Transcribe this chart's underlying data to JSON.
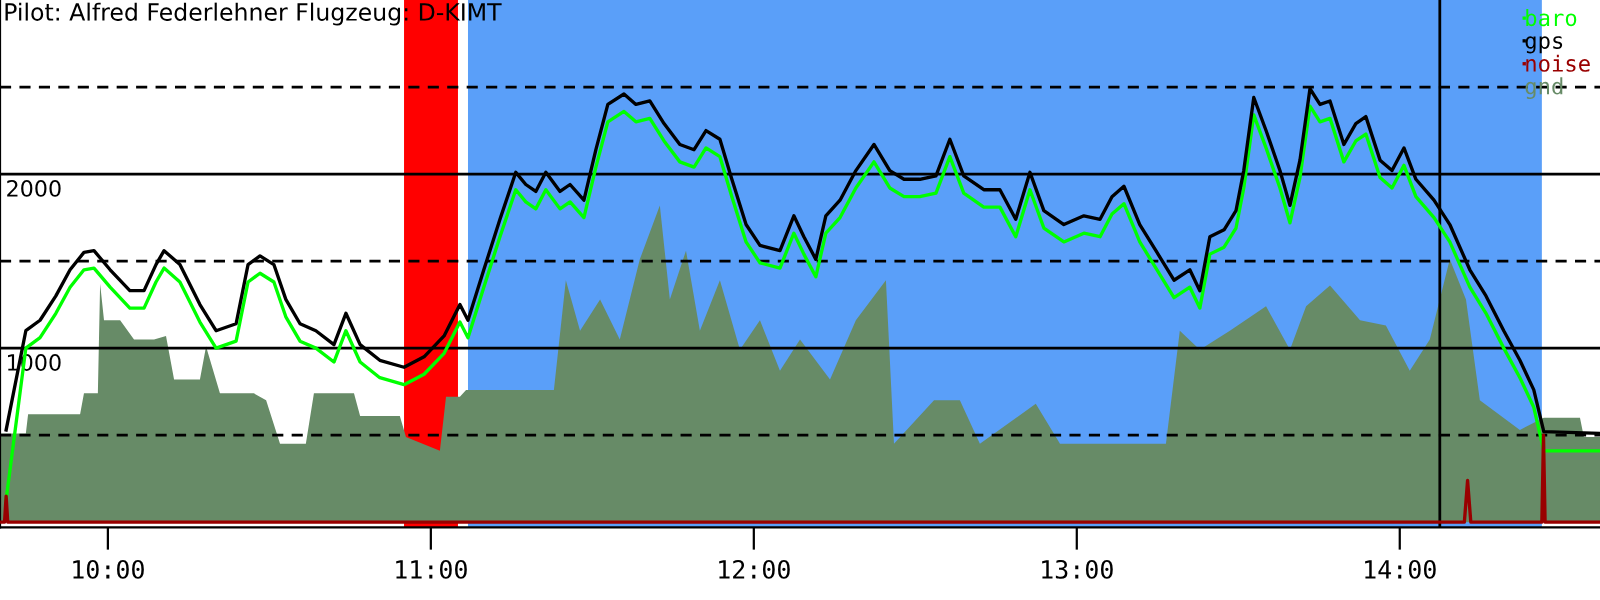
{
  "chart_data": {
    "type": "line",
    "title": "Pilot: Alfred Federlehner Flugzeug: D-KIMT",
    "xlim": [
      9.666,
      14.62
    ],
    "ylim": [
      -30,
      3000
    ],
    "xticks": [
      {
        "value": 10,
        "label": "10:00"
      },
      {
        "value": 11,
        "label": "11:00"
      },
      {
        "value": 12,
        "label": "12:00"
      },
      {
        "value": 13,
        "label": "13:00"
      },
      {
        "value": 14,
        "label": "14:00"
      }
    ],
    "yticks": [
      {
        "value": 500,
        "label": null
      },
      1000,
      {
        "value": 1500,
        "label": null
      },
      2000,
      {
        "value": 2500,
        "label": null
      }
    ],
    "grid": "y",
    "legend": "top right",
    "ref_lines": [
      {
        "axis": "x",
        "value": 14.124,
        "color": "#000000",
        "line_style": "solid"
      }
    ],
    "bands": [
      {
        "axis": "x",
        "from": 10.917,
        "to": 11.084,
        "color": "#ff0000"
      },
      {
        "axis": "x",
        "from": 11.115,
        "to": 14.44,
        "color": "#5a9ff9"
      }
    ],
    "series": [
      {
        "name": "baro",
        "color": "#00ff00",
        "x": [
          9.685,
          9.746,
          9.79,
          9.839,
          9.883,
          9.926,
          9.957,
          10.007,
          10.068,
          10.112,
          10.149,
          10.174,
          10.223,
          10.285,
          10.335,
          10.397,
          10.434,
          10.471,
          10.514,
          10.551,
          10.595,
          10.644,
          10.7,
          10.737,
          10.781,
          10.842,
          10.917,
          10.979,
          11.041,
          11.09,
          11.115,
          11.164,
          11.214,
          11.263,
          11.294,
          11.325,
          11.356,
          11.4,
          11.431,
          11.474,
          11.511,
          11.548,
          11.598,
          11.635,
          11.678,
          11.722,
          11.771,
          11.815,
          11.852,
          11.895,
          11.932,
          11.976,
          12.019,
          12.081,
          12.124,
          12.155,
          12.192,
          12.223,
          12.267,
          12.316,
          12.372,
          12.421,
          12.465,
          12.514,
          12.564,
          12.607,
          12.65,
          12.712,
          12.762,
          12.811,
          12.855,
          12.898,
          12.96,
          13.022,
          13.072,
          13.109,
          13.146,
          13.195,
          13.245,
          13.301,
          13.35,
          13.381,
          13.412,
          13.456,
          13.493,
          13.517,
          13.548,
          13.586,
          13.629,
          13.66,
          13.691,
          13.722,
          13.753,
          13.784,
          13.827,
          13.864,
          13.895,
          13.939,
          13.976,
          14.013,
          14.05,
          14.106,
          14.155,
          14.217,
          14.267,
          14.322,
          14.372,
          14.415,
          14.446,
          14.62
        ],
        "values": [
          130,
          1000,
          1060,
          1200,
          1350,
          1450,
          1460,
          1350,
          1230,
          1230,
          1380,
          1460,
          1380,
          1150,
          1000,
          1040,
          1380,
          1430,
          1380,
          1180,
          1040,
          1000,
          920,
          1100,
          920,
          830,
          790,
          850,
          970,
          1150,
          1060,
          1350,
          1640,
          1910,
          1840,
          1800,
          1910,
          1800,
          1840,
          1750,
          2040,
          2300,
          2360,
          2300,
          2320,
          2190,
          2070,
          2040,
          2150,
          2100,
          1870,
          1610,
          1490,
          1460,
          1660,
          1540,
          1410,
          1660,
          1750,
          1920,
          2070,
          1920,
          1870,
          1870,
          1890,
          2100,
          1890,
          1810,
          1810,
          1640,
          1910,
          1690,
          1610,
          1660,
          1640,
          1770,
          1830,
          1610,
          1460,
          1290,
          1350,
          1230,
          1540,
          1580,
          1690,
          1920,
          2340,
          2150,
          1920,
          1720,
          1980,
          2390,
          2300,
          2320,
          2070,
          2190,
          2230,
          1980,
          1920,
          2050,
          1870,
          1750,
          1610,
          1350,
          1200,
          1000,
          830,
          660,
          410,
          410
        ]
      },
      {
        "name": "gps",
        "color": "#000000",
        "x": [
          9.685,
          9.746,
          9.79,
          9.839,
          9.883,
          9.926,
          9.957,
          10.007,
          10.068,
          10.112,
          10.149,
          10.174,
          10.223,
          10.285,
          10.335,
          10.397,
          10.434,
          10.471,
          10.514,
          10.551,
          10.595,
          10.644,
          10.7,
          10.737,
          10.781,
          10.842,
          10.917,
          10.979,
          11.041,
          11.09,
          11.115,
          11.164,
          11.214,
          11.263,
          11.294,
          11.325,
          11.356,
          11.4,
          11.431,
          11.474,
          11.511,
          11.548,
          11.598,
          11.635,
          11.678,
          11.722,
          11.771,
          11.815,
          11.852,
          11.895,
          11.932,
          11.976,
          12.019,
          12.081,
          12.124,
          12.155,
          12.192,
          12.223,
          12.267,
          12.316,
          12.372,
          12.421,
          12.465,
          12.514,
          12.564,
          12.607,
          12.65,
          12.712,
          12.762,
          12.811,
          12.855,
          12.898,
          12.96,
          13.022,
          13.072,
          13.109,
          13.146,
          13.195,
          13.245,
          13.301,
          13.35,
          13.381,
          13.412,
          13.456,
          13.493,
          13.517,
          13.548,
          13.586,
          13.629,
          13.66,
          13.691,
          13.722,
          13.753,
          13.784,
          13.827,
          13.864,
          13.895,
          13.939,
          13.976,
          14.013,
          14.05,
          14.106,
          14.155,
          14.217,
          14.267,
          14.322,
          14.372,
          14.415,
          14.446,
          14.62
        ],
        "values": [
          530,
          1100,
          1160,
          1300,
          1450,
          1550,
          1560,
          1450,
          1330,
          1330,
          1480,
          1560,
          1480,
          1250,
          1100,
          1140,
          1480,
          1530,
          1480,
          1280,
          1140,
          1100,
          1020,
          1200,
          1020,
          930,
          890,
          950,
          1070,
          1250,
          1160,
          1450,
          1740,
          2010,
          1940,
          1900,
          2010,
          1900,
          1940,
          1850,
          2140,
          2400,
          2460,
          2400,
          2420,
          2290,
          2170,
          2140,
          2250,
          2200,
          1970,
          1710,
          1590,
          1560,
          1760,
          1640,
          1510,
          1760,
          1850,
          2020,
          2170,
          2020,
          1970,
          1970,
          1990,
          2200,
          1990,
          1910,
          1910,
          1740,
          2010,
          1790,
          1710,
          1760,
          1740,
          1870,
          1930,
          1710,
          1560,
          1390,
          1450,
          1330,
          1640,
          1680,
          1790,
          2020,
          2440,
          2250,
          2020,
          1820,
          2080,
          2490,
          2400,
          2420,
          2170,
          2290,
          2330,
          2080,
          2020,
          2150,
          1970,
          1850,
          1710,
          1450,
          1300,
          1100,
          930,
          760,
          520,
          510
        ]
      },
      {
        "name": "noise",
        "color": "#990000",
        "x": [
          9.666,
          9.68,
          9.685,
          9.69,
          14.2,
          14.21,
          14.22,
          14.44,
          14.445,
          14.45,
          14.62
        ],
        "values": [
          0,
          0,
          150,
          0,
          0,
          240,
          0,
          0,
          500,
          0,
          0
        ]
      },
      {
        "name": "gnd",
        "type": "area",
        "color": "#678b67",
        "x": [
          9.666,
          9.746,
          9.753,
          9.914,
          9.926,
          9.969,
          9.976,
          9.988,
          10.038,
          10.081,
          10.143,
          10.18,
          10.205,
          10.285,
          10.304,
          10.347,
          10.452,
          10.49,
          10.533,
          10.613,
          10.638,
          10.762,
          10.781,
          10.904,
          10.923,
          11.028,
          11.047,
          11.09,
          11.109,
          11.381,
          11.418,
          11.462,
          11.524,
          11.585,
          11.647,
          11.709,
          11.74,
          11.79,
          11.833,
          11.895,
          11.957,
          12.019,
          12.081,
          12.143,
          12.236,
          12.316,
          12.409,
          12.434,
          12.558,
          12.638,
          12.7,
          12.873,
          12.948,
          13.276,
          13.319,
          13.381,
          13.474,
          13.586,
          13.66,
          13.71,
          13.784,
          13.877,
          13.957,
          14.031,
          14.093,
          14.155,
          14.205,
          14.248,
          14.372,
          14.446,
          14.558,
          14.57,
          14.62
        ],
        "values": [
          510,
          510,
          620,
          620,
          740,
          740,
          1370,
          1160,
          1160,
          1050,
          1050,
          1070,
          820,
          820,
          1010,
          740,
          740,
          700,
          450,
          450,
          740,
          740,
          610,
          610,
          490,
          410,
          720,
          720,
          760,
          760,
          1390,
          1100,
          1280,
          1050,
          1510,
          1820,
          1280,
          1560,
          1100,
          1390,
          990,
          1160,
          870,
          1050,
          820,
          1160,
          1390,
          450,
          700,
          700,
          450,
          680,
          450,
          450,
          1100,
          990,
          1100,
          1240,
          990,
          1240,
          1360,
          1160,
          1130,
          870,
          1050,
          1510,
          1280,
          700,
          530,
          600,
          600,
          490,
          490
        ]
      }
    ]
  }
}
